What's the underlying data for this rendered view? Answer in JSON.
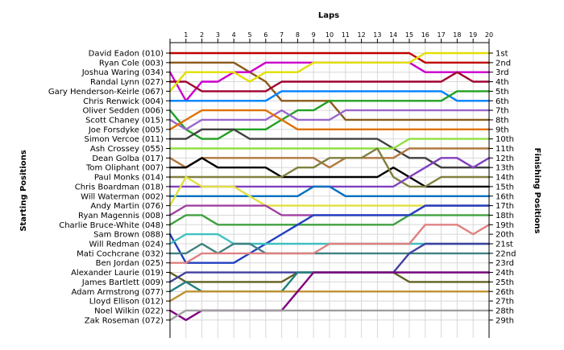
{
  "chart_data": {
    "type": "line",
    "title": "Laps",
    "ylabel_left": "Starting Positions",
    "ylabel_right": "Finishing Positions",
    "x": [
      0,
      1,
      2,
      3,
      4,
      5,
      6,
      7,
      8,
      9,
      10,
      11,
      12,
      13,
      14,
      15,
      16,
      17,
      18,
      19,
      20
    ],
    "xlim": [
      0,
      20
    ],
    "grid": true,
    "drivers": [
      "David Eadon (010)",
      "Ryan Cole (003)",
      "Joshua Waring (034)",
      "Randal Lynn (027)",
      "Gary Henderson-Keirle (067)",
      "Chris Renwick (004)",
      "Oliver Sedden (006)",
      "Scott Chaney (015)",
      "Joe Forsdyke (005)",
      "Simon Vercoe (011)",
      "Ash Crossey (055)",
      "Dean Golba (017)",
      "Tom Oliphant (007)",
      "Paul Monks (014)",
      "Chris Boardman (018)",
      "Will Waterman (002)",
      "Andy Martin (076)",
      "Ryan Magennis (008)",
      "Charlie Bruce-White (048)",
      "Sam Brown (088)",
      "Will Redman (024)",
      "Mati Cochcrane (032)",
      "Ben Jordan (025)",
      "Alexander Laurie (019)",
      "James Bartlett (009)",
      "Adam Armstrong (077)",
      "Lloyd Ellison (012)",
      "Noel Wilkin (022)",
      "Zak Roseman (072)"
    ],
    "finishing_labels": [
      "1st",
      "2nd",
      "3rd",
      "4th",
      "5th",
      "6th",
      "7th",
      "8th",
      "9th",
      "10th",
      "11th",
      "12th",
      "13th",
      "14th",
      "15th",
      "16th",
      "17th",
      "18th",
      "19th",
      "20th",
      "21st",
      "22nd",
      "23rd",
      "24th",
      "25th",
      "26th",
      "27th",
      "28th",
      "29th"
    ],
    "series": [
      {
        "color": "#c00000",
        "positions": [
          1,
          1,
          1,
          1,
          1,
          1,
          1,
          1,
          1,
          1,
          1,
          1,
          1,
          1,
          1,
          1,
          2,
          2,
          2,
          2,
          2
        ]
      },
      {
        "color": "#8b5a1a",
        "positions": [
          2,
          2,
          2,
          2,
          2,
          3,
          4,
          6,
          6,
          6,
          6,
          8,
          8,
          8,
          8,
          8,
          8,
          8,
          8,
          8,
          8
        ]
      },
      {
        "color": "#cc00cc",
        "positions": [
          3,
          6,
          4,
          4,
          3,
          3,
          2,
          2,
          2,
          2,
          2,
          2,
          2,
          2,
          2,
          2,
          3,
          3,
          3,
          3,
          3
        ]
      },
      {
        "color": "#a00030",
        "positions": [
          4,
          4,
          5,
          5,
          5,
          5,
          5,
          4,
          4,
          4,
          4,
          4,
          4,
          4,
          4,
          4,
          4,
          4,
          3,
          4,
          4
        ]
      },
      {
        "color": "#e0e000",
        "positions": [
          5,
          3,
          3,
          3,
          3,
          4,
          3,
          3,
          3,
          2,
          2,
          2,
          2,
          2,
          2,
          2,
          1,
          1,
          1,
          1,
          1
        ]
      },
      {
        "color": "#0080ff",
        "positions": [
          6,
          6,
          6,
          6,
          6,
          6,
          6,
          5,
          5,
          5,
          5,
          5,
          5,
          5,
          5,
          5,
          5,
          5,
          6,
          6,
          6
        ]
      },
      {
        "color": "#20a020",
        "positions": [
          7,
          9,
          10,
          10,
          9,
          9,
          9,
          8,
          7,
          7,
          6,
          6,
          6,
          6,
          6,
          6,
          6,
          6,
          5,
          5,
          5
        ]
      },
      {
        "color": "#9966cc",
        "positions": [
          8,
          9,
          8,
          8,
          8,
          8,
          8,
          7,
          8,
          8,
          8,
          7,
          7,
          7,
          7,
          7,
          7,
          7,
          7,
          7,
          7
        ]
      },
      {
        "color": "#e07000",
        "positions": [
          9,
          8,
          7,
          7,
          7,
          7,
          7,
          8,
          9,
          9,
          9,
          9,
          9,
          9,
          9,
          9,
          9,
          9,
          9,
          9,
          9
        ]
      },
      {
        "color": "#404040",
        "positions": [
          10,
          10,
          9,
          9,
          9,
          10,
          10,
          10,
          10,
          10,
          10,
          10,
          10,
          10,
          11,
          12,
          12,
          13,
          13,
          13,
          13
        ]
      },
      {
        "color": "#90e040",
        "positions": [
          11,
          11,
          11,
          11,
          11,
          11,
          11,
          11,
          11,
          11,
          11,
          11,
          11,
          11,
          11,
          10,
          10,
          10,
          10,
          10,
          10
        ]
      },
      {
        "color": "#b07840",
        "positions": [
          12,
          13,
          12,
          12,
          12,
          12,
          12,
          12,
          12,
          12,
          13,
          12,
          12,
          12,
          12,
          11,
          11,
          11,
          11,
          11,
          11
        ]
      },
      {
        "color": "#000000",
        "positions": [
          13,
          13,
          12,
          13,
          13,
          13,
          13,
          14,
          14,
          14,
          14,
          14,
          14,
          14,
          13,
          14,
          15,
          15,
          15,
          15,
          15
        ]
      },
      {
        "color": "#808040",
        "positions": [
          14,
          14,
          14,
          14,
          14,
          14,
          14,
          14,
          13,
          13,
          12,
          12,
          12,
          11,
          14,
          15,
          15,
          14,
          14,
          14,
          14
        ]
      },
      {
        "color": "#8040c0",
        "positions": [
          15,
          15,
          15,
          15,
          15,
          15,
          15,
          15,
          15,
          15,
          15,
          15,
          15,
          15,
          15,
          14,
          13,
          12,
          12,
          13,
          12
        ]
      },
      {
        "color": "#0070c0",
        "positions": [
          16,
          16,
          16,
          16,
          16,
          16,
          16,
          16,
          16,
          15,
          15,
          16,
          16,
          16,
          16,
          16,
          16,
          16,
          16,
          16,
          16
        ]
      },
      {
        "color": "#e0e040",
        "positions": [
          17,
          14,
          15,
          15,
          15,
          16,
          17,
          17,
          17,
          17,
          17,
          17,
          17,
          17,
          17,
          17,
          17,
          17,
          17,
          17,
          17
        ]
      },
      {
        "color": "#a040a0",
        "positions": [
          18,
          17,
          17,
          17,
          17,
          17,
          17,
          18,
          18,
          18,
          18,
          18,
          18,
          18,
          18,
          18,
          17,
          17,
          17,
          17,
          17
        ]
      },
      {
        "color": "#40a040",
        "positions": [
          19,
          18,
          18,
          19,
          19,
          19,
          19,
          19,
          19,
          19,
          19,
          19,
          19,
          19,
          19,
          18,
          18,
          18,
          18,
          18,
          18
        ]
      },
      {
        "color": "#2040c0",
        "positions": [
          20,
          23,
          23,
          23,
          23,
          22,
          21,
          20,
          19,
          18,
          18,
          18,
          18,
          18,
          18,
          18,
          17,
          17,
          17,
          17,
          17
        ]
      },
      {
        "color": "#40c0c0",
        "positions": [
          21,
          20,
          20,
          20,
          21,
          21,
          21,
          21,
          21,
          21,
          21,
          21,
          21,
          21,
          21,
          21,
          21,
          21,
          21,
          21,
          21
        ]
      },
      {
        "color": "#408080",
        "positions": [
          22,
          22,
          21,
          22,
          21,
          21,
          22,
          22,
          22,
          22,
          22,
          22,
          22,
          22,
          22,
          22,
          22,
          22,
          22,
          22,
          22
        ]
      },
      {
        "color": "#e08080",
        "positions": [
          23,
          23,
          22,
          22,
          22,
          22,
          22,
          22,
          22,
          22,
          21,
          21,
          21,
          21,
          21,
          21,
          19,
          19,
          19,
          20,
          19
        ]
      },
      {
        "color": "#606020",
        "positions": [
          24,
          25,
          25,
          25,
          25,
          25,
          25,
          25,
          24,
          24,
          24,
          24,
          24,
          24,
          24,
          25,
          25,
          25,
          25,
          25,
          25
        ]
      },
      {
        "color": "#4040a0",
        "positions": [
          25,
          24,
          24,
          24,
          24,
          24,
          24,
          24,
          24,
          24,
          24,
          24,
          24,
          24,
          24,
          22,
          21,
          21,
          21,
          21,
          21
        ]
      },
      {
        "color": "#208080",
        "positions": [
          26,
          25,
          26,
          26,
          26,
          26,
          26,
          26,
          24,
          24,
          24,
          24,
          24,
          24,
          24,
          24,
          24,
          24,
          24,
          24,
          24
        ]
      },
      {
        "color": "#c09030",
        "positions": [
          27,
          26,
          26,
          26,
          26,
          26,
          26,
          26,
          26,
          26,
          26,
          26,
          26,
          26,
          26,
          26,
          26,
          26,
          26,
          26,
          26
        ]
      },
      {
        "color": "#800080",
        "positions": [
          28,
          29,
          28,
          28,
          28,
          28,
          28,
          28,
          26,
          24,
          24,
          24,
          24,
          24,
          24,
          24,
          24,
          24,
          24,
          24,
          24
        ]
      },
      {
        "color": "#a0a0a0",
        "positions": [
          29,
          28,
          28,
          28,
          28,
          28,
          28,
          28,
          28,
          28,
          28,
          28,
          28,
          28,
          28,
          28,
          28,
          28,
          28,
          28,
          28
        ]
      }
    ]
  }
}
